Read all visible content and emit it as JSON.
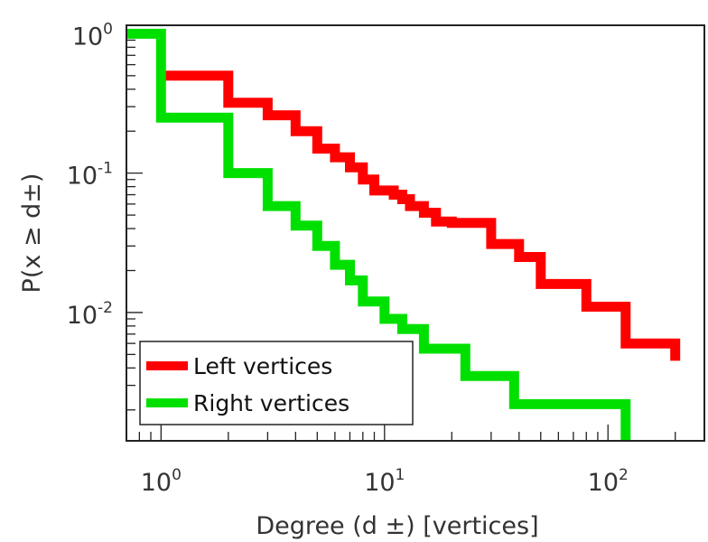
{
  "chart_data": {
    "type": "line",
    "xlabel": "Degree (d ±) [vertices]",
    "ylabel": "P(x ≥ d±)",
    "x_scale": "log",
    "y_scale": "log",
    "xlim": [
      0.7,
      270
    ],
    "ylim": [
      0.0012,
      1.15
    ],
    "x_ticks": [
      {
        "value": 1,
        "base": "10",
        "exp": "0"
      },
      {
        "value": 10,
        "base": "10",
        "exp": "1"
      },
      {
        "value": 100,
        "base": "10",
        "exp": "2"
      }
    ],
    "y_ticks": [
      {
        "value": 1,
        "base": "10",
        "exp": "0"
      },
      {
        "value": 0.1,
        "base": "10",
        "exp": "-1"
      },
      {
        "value": 0.01,
        "base": "10",
        "exp": "-2"
      }
    ],
    "grid": false,
    "legend_position": "bottom-left",
    "series": [
      {
        "name": "Left vertices",
        "color": "#ff0000",
        "x": [
          1,
          2,
          3,
          4,
          5,
          6,
          7,
          8,
          9,
          11,
          12,
          13,
          15,
          17,
          20,
          30,
          40,
          50,
          80,
          120,
          200
        ],
        "y": [
          0.5,
          0.32,
          0.26,
          0.2,
          0.15,
          0.13,
          0.11,
          0.09,
          0.075,
          0.07,
          0.065,
          0.058,
          0.052,
          0.045,
          0.044,
          0.031,
          0.025,
          0.016,
          0.011,
          0.006,
          0.0045
        ]
      },
      {
        "name": "Right vertices",
        "color": "#00e000",
        "x": [
          0.7,
          1,
          2,
          3,
          4,
          5,
          6,
          7,
          8,
          10,
          12,
          15,
          23,
          38,
          120
        ],
        "y": [
          1,
          0.25,
          0.1,
          0.058,
          0.042,
          0.03,
          0.022,
          0.017,
          0.012,
          0.009,
          0.0076,
          0.0055,
          0.0035,
          0.0022,
          0.0015
        ]
      }
    ]
  }
}
